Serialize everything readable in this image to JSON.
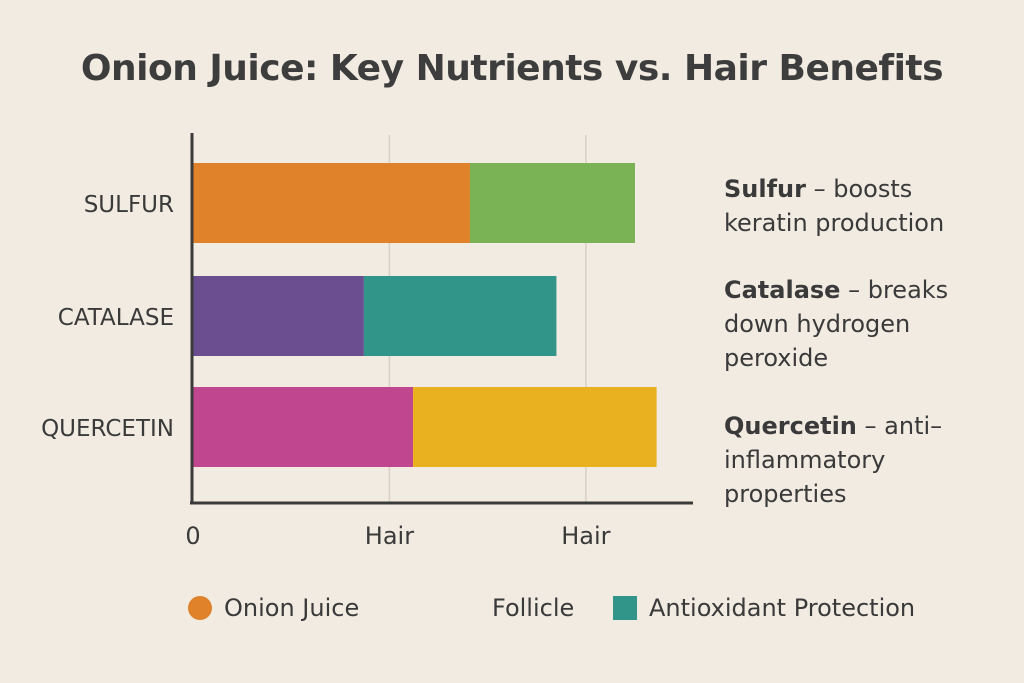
{
  "chart_data": {
    "type": "bar",
    "stacked": true,
    "orientation": "horizontal",
    "title": "Onion Juice: Key Nutrients vs. Hair Benefits",
    "categories": [
      "SULFUR",
      "CATALASE",
      "QUERCETIN"
    ],
    "segments": [
      [
        {
          "value": 1.41,
          "color": "#e0822a"
        },
        {
          "value": 0.84,
          "color": "#7ab356"
        }
      ],
      [
        {
          "value": 0.87,
          "color": "#6b4e90"
        },
        {
          "value": 0.98,
          "color": "#32958a"
        }
      ],
      [
        {
          "value": 1.12,
          "color": "#c0468f"
        },
        {
          "value": 1.24,
          "color": "#e9b11f"
        }
      ]
    ],
    "x_ticks": [
      {
        "value": 0,
        "label": "0"
      },
      {
        "value": 1,
        "label": "Hair"
      },
      {
        "value": 2,
        "label": "Hair"
      }
    ],
    "xlim": [
      0,
      2.53
    ],
    "grid": true,
    "legend": [
      {
        "label": "Onion Juice",
        "color": "#e0822a",
        "shape": "circle"
      },
      {
        "label": "Follicle",
        "color": "",
        "shape": "none"
      },
      {
        "label": "Antioxidant Protection",
        "color": "#32958a",
        "shape": "square"
      }
    ],
    "legend_position": "bottom",
    "annotations": [
      {
        "lead": "Sulfur",
        "rest_line1": " – boosts",
        "rest_lines": [
          "keratin production"
        ]
      },
      {
        "lead": "Catalase",
        "rest_line1": " – breaks",
        "rest_lines": [
          "down hydrogen",
          "peroxide"
        ]
      },
      {
        "lead": "Quercetin",
        "rest_line1": " – anti–",
        "rest_lines": [
          "inflammatory",
          "properties"
        ]
      }
    ]
  }
}
